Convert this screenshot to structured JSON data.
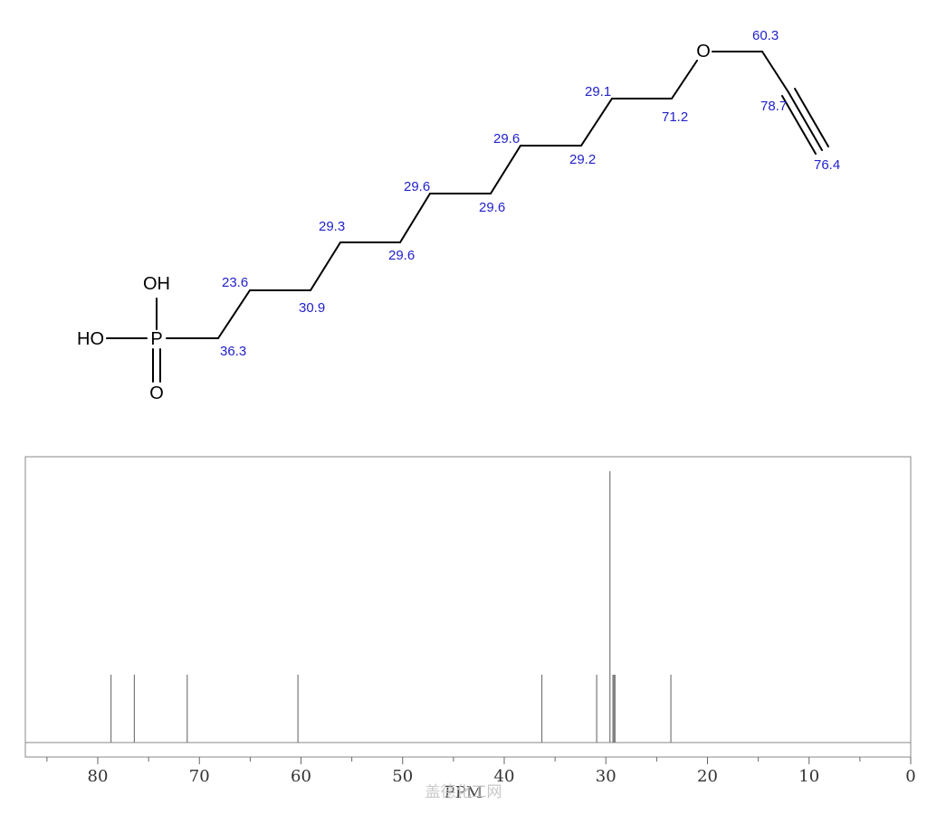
{
  "molecule": {
    "atoms": {
      "oh_top": "OH",
      "ho_left": "HO",
      "phosphorus": "P",
      "oxo": "O",
      "ether_o": "O"
    },
    "shift_labels": [
      "36.3",
      "23.6",
      "30.9",
      "29.3",
      "29.6",
      "29.6",
      "29.6",
      "29.6",
      "29.2",
      "29.1",
      "71.2",
      "60.3",
      "78.7",
      "76.4"
    ]
  },
  "chart_data": {
    "type": "bar",
    "xlabel": "PPM",
    "xlim": [
      0,
      87
    ],
    "x_reversed": true,
    "ticks": [
      "80",
      "70",
      "60",
      "50",
      "40",
      "30",
      "20",
      "10",
      "0"
    ],
    "peaks": [
      {
        "ppm": 78.7,
        "intensity": 0.25
      },
      {
        "ppm": 76.4,
        "intensity": 0.25
      },
      {
        "ppm": 71.2,
        "intensity": 0.25
      },
      {
        "ppm": 60.3,
        "intensity": 0.25
      },
      {
        "ppm": 36.3,
        "intensity": 0.25
      },
      {
        "ppm": 30.9,
        "intensity": 0.25
      },
      {
        "ppm": 29.6,
        "intensity": 1.0
      },
      {
        "ppm": 29.3,
        "intensity": 0.25
      },
      {
        "ppm": 29.2,
        "intensity": 0.25
      },
      {
        "ppm": 29.1,
        "intensity": 0.25
      },
      {
        "ppm": 23.6,
        "intensity": 0.25
      }
    ]
  },
  "watermark": "盖德化工网"
}
